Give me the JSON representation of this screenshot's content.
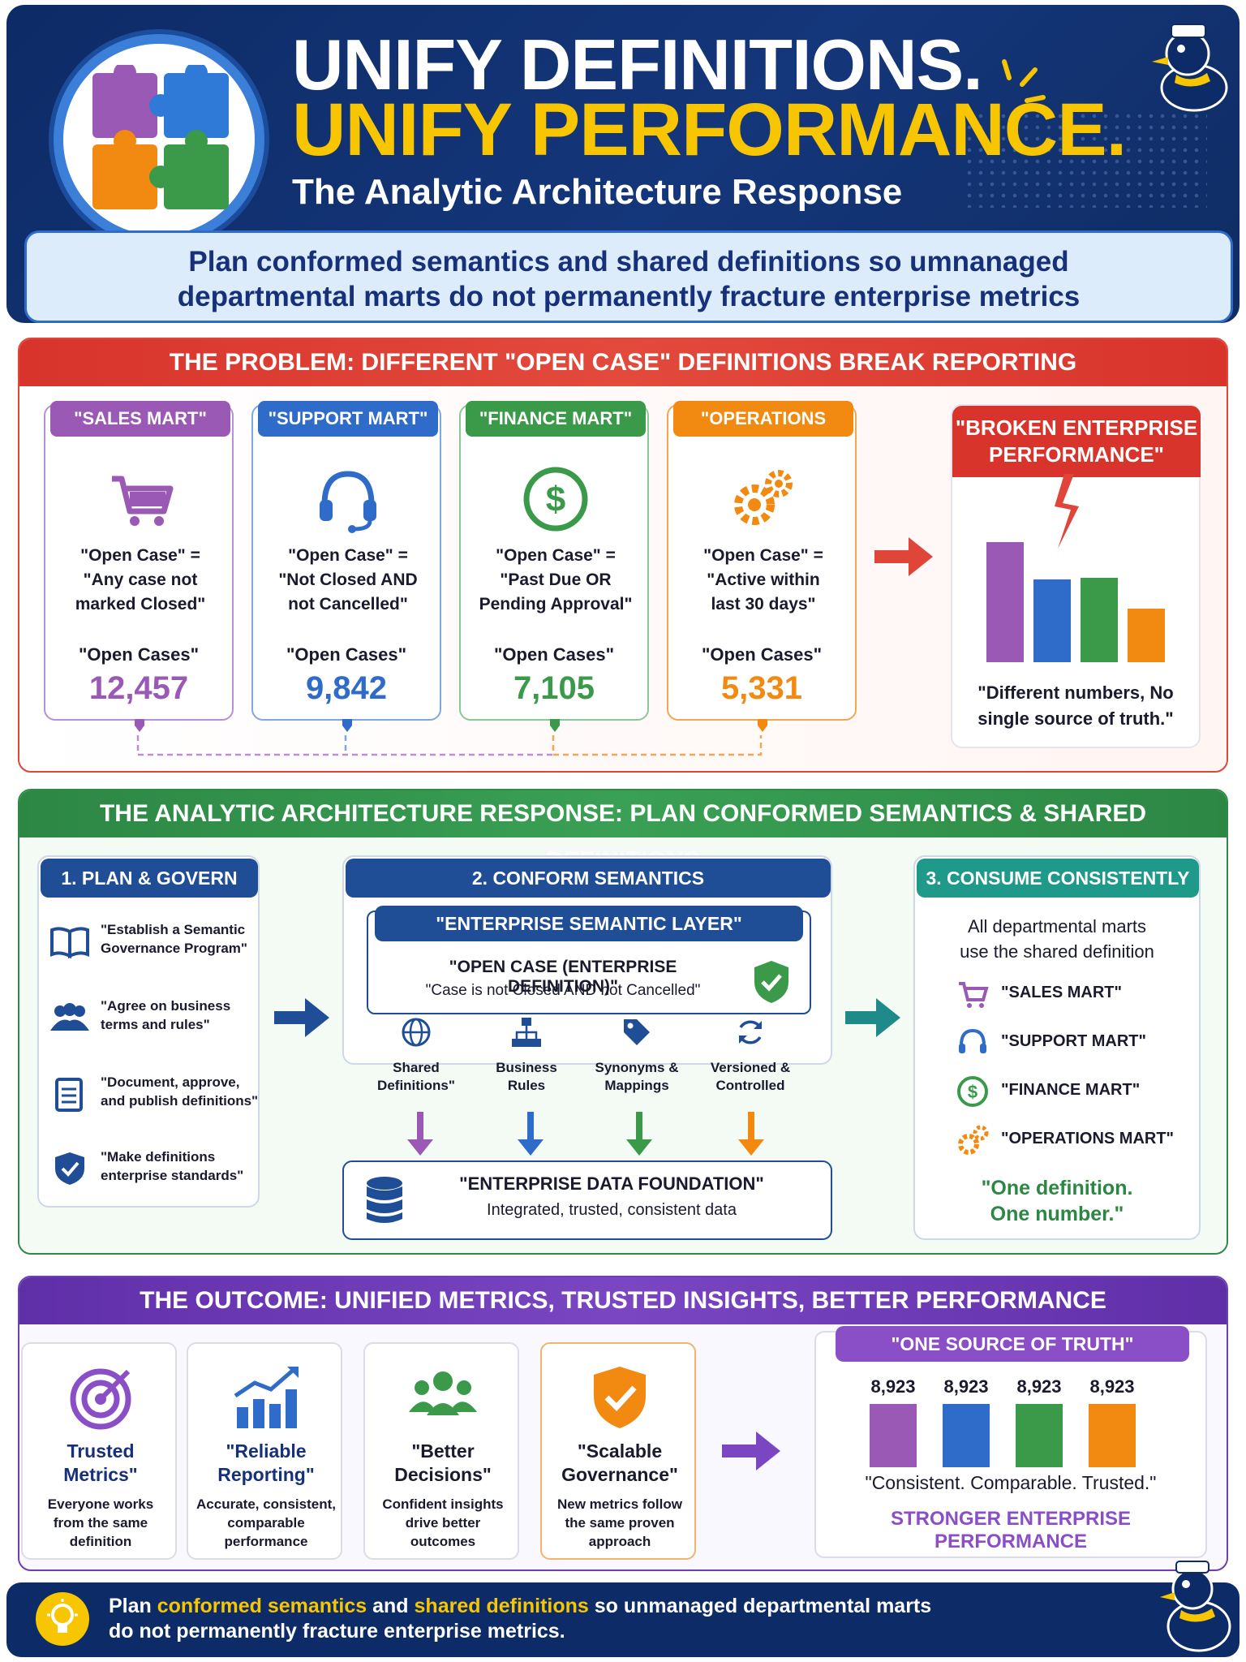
{
  "header": {
    "title_line1": "UNIFY DEFINITIONS.",
    "title_line2": "UNIFY PERFORMANCE.",
    "subtitle": "The Analytic Architecture Response",
    "tagline_line1": "Plan conformed semantics and shared definitions so umnanaged",
    "tagline_line2": "departmental marts do not permanently fracture enterprise metrics"
  },
  "problem": {
    "heading": "THE PROBLEM: DIFFERENT \"OPEN CASE\" DEFINITIONS BREAK REPORTING",
    "marts": [
      {
        "tag": "\"SALES MART\"",
        "icon": "shopping-cart-icon",
        "def_line1": "\"Open Case\" =",
        "def_line2": "\"Any case not",
        "def_line3": "marked Closed\"",
        "label": "\"Open Cases\"",
        "value": "12,457",
        "color": "#9b59b6"
      },
      {
        "tag": "\"SUPPORT MART\"",
        "icon": "headset-icon",
        "def_line1": "\"Open Case\" =",
        "def_line2": "\"Not Closed AND",
        "def_line3": "not Cancelled\"",
        "label": "\"Open Cases\"",
        "value": "9,842",
        "color": "#2f6cc9"
      },
      {
        "tag": "\"FINANCE MART\"",
        "icon": "dollar-icon",
        "def_line1": "\"Open Case\" =",
        "def_line2": "\"Past Due OR",
        "def_line3": "Pending Approval\"",
        "label": "\"Open Cases\"",
        "value": "7,105",
        "color": "#3a9a4a"
      },
      {
        "tag": "\"OPERATIONS MART\"",
        "icon": "gears-icon",
        "def_line1": "\"Open Case\" =",
        "def_line2": "\"Active within",
        "def_line3": "last 30 days\"",
        "label": "\"Open Cases\"",
        "value": "5,331",
        "color": "#f28a12"
      }
    ],
    "broken": {
      "tag_line1": "\"BROKEN ENTERPRISE",
      "tag_line2": "PERFORMANCE\"",
      "caption_line1": "\"Different numbers, No",
      "caption_line2": "single source of truth.\""
    }
  },
  "response": {
    "heading": "THE ANALYTIC ARCHITECTURE RESPONSE: PLAN CONFORMED SEMANTICS & SHARED DEFINITIONS",
    "plan": {
      "tag": "1. PLAN & GOVERN",
      "items": [
        {
          "icon": "book-icon",
          "line1": "\"Establish a Semantic",
          "line2": "Governance Program\""
        },
        {
          "icon": "people-icon",
          "line1": "\"Agree on business",
          "line2": "terms and rules\""
        },
        {
          "icon": "clipboard-icon",
          "line1": "\"Document, approve,",
          "line2": "and publish definitions\""
        },
        {
          "icon": "shield-check-icon",
          "line1": "\"Make definitions",
          "line2": "enterprise standards\""
        }
      ]
    },
    "conform": {
      "tag": "2. CONFORM SEMANTICS",
      "layer_tag": "\"ENTERPRISE SEMANTIC LAYER\"",
      "definition_title": "\"OPEN CASE (ENTERPRISE DEFINITION)\"",
      "definition_text": "\"Case is not Closed AND not Cancelled\"",
      "features": [
        {
          "icon": "globe-icon",
          "line1": "Shared",
          "line2": "Definitions\""
        },
        {
          "icon": "org-chart-icon",
          "line1": "Business",
          "line2": "Rules"
        },
        {
          "icon": "tag-icon",
          "line1": "Synonyms &",
          "line2": "Mappings"
        },
        {
          "icon": "refresh-icon",
          "line1": "Versioned &",
          "line2": "Controlled"
        }
      ],
      "foundation_title": "\"ENTERPRISE DATA FOUNDATION\"",
      "foundation_text": "Integrated, trusted, consistent data"
    },
    "consume": {
      "tag": "3. CONSUME CONSISTENTLY",
      "intro_line1": "All departmental marts",
      "intro_line2": "use the shared definition",
      "marts": [
        "\"SALES MART\"",
        "\"SUPPORT MART\"",
        "\"FINANCE MART\"",
        "\"OPERATIONS MART\""
      ],
      "motto_line1": "\"One definition.",
      "motto_line2": "One number.\""
    }
  },
  "outcome": {
    "heading": "THE OUTCOME: UNIFIED METRICS, TRUSTED INSIGHTS, BETTER PERFORMANCE",
    "cards": [
      {
        "icon": "target-icon",
        "title_line1": "Trusted",
        "title_line2": "Metrics\"",
        "desc_line1": "Everyone works",
        "desc_line2": "from the same",
        "desc_line3": "definition",
        "color": "#8a4fc7"
      },
      {
        "icon": "growth-chart-icon",
        "title_line1": "\"Reliable",
        "title_line2": "Reporting\"",
        "desc_line1": "Accurate, consistent,",
        "desc_line2": "comparable",
        "desc_line3": "performance",
        "color": "#2f6cc9"
      },
      {
        "icon": "team-icon",
        "title_line1": "\"Better Decisions\"",
        "title_line2": "",
        "desc_line1": "Confident insights",
        "desc_line2": "drive better",
        "desc_line3": "outcomes",
        "color": "#1a1a2e"
      },
      {
        "icon": "shield-check-icon",
        "title_line1": "\"Scalable",
        "title_line2": "Governance\"",
        "desc_line1": "New metrics follow",
        "desc_line2": "the same proven",
        "desc_line3": "approach",
        "color": "#1a1a2e"
      }
    ],
    "sot": {
      "tag": "\"ONE SOURCE OF TRUTH\"",
      "values": [
        "8,923",
        "8,923",
        "8,923",
        "8,923"
      ],
      "caption": "\"Consistent. Comparable. Trusted.\"",
      "footer": "STRONGER ENTERPRISE PERFORMANCE"
    }
  },
  "footer": {
    "part1": "Plan ",
    "hl1": "conformed semantics",
    "part2": " and ",
    "hl2": "shared definitions",
    "part3": " so unmanaged departmental marts",
    "line2": "do not permanently fracture enterprise metrics."
  },
  "colors": {
    "navy": "#0d2b66",
    "yellow": "#f7c600",
    "purple": "#9b59b6",
    "blue": "#2f6cc9",
    "green": "#3a9a4a",
    "orange": "#f28a12",
    "red": "#d8342c"
  }
}
